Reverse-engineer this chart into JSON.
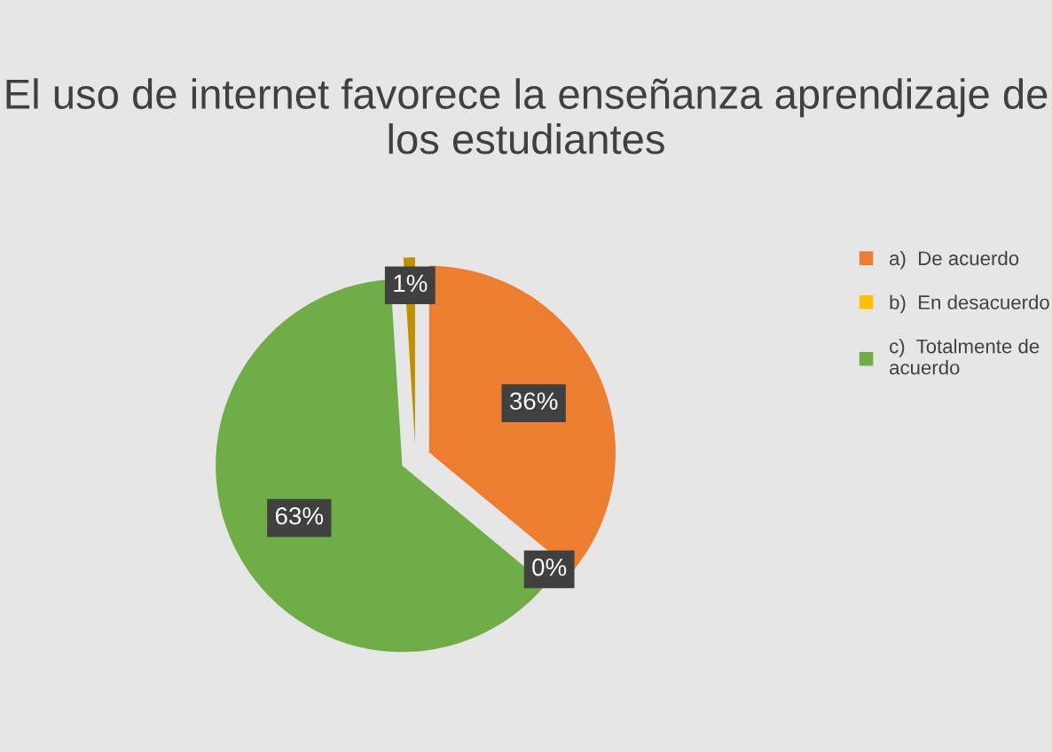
{
  "chart_data": {
    "type": "pie",
    "title": "El uso de internet favorece la enseñanza aprendizaje de los estudiantes",
    "categories": [
      "a)  De acuerdo",
      "b)  En desacuerdo",
      "c)  Totalmente de acuerdo",
      null
    ],
    "values": [
      36,
      0,
      63,
      1
    ],
    "colors": [
      "#ed7d31",
      "#ffc000",
      "#70ad47",
      "#bf9000"
    ],
    "value_labels": [
      "36%",
      "0%",
      "63%",
      "1%"
    ],
    "legend": "right"
  }
}
